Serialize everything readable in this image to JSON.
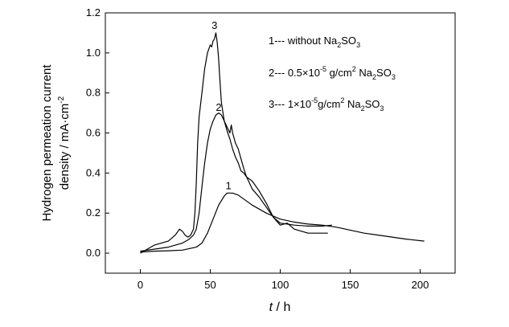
{
  "chart_data": {
    "type": "line",
    "ylabel_line1": "Hydrogen permeation current",
    "ylabel_line2": "density / mA·cm",
    "ylabel_sup": "-2",
    "xlabel_var": "t",
    "xlabel_unit": " / h",
    "xlim": [
      -25,
      225
    ],
    "ylim": [
      -0.1,
      1.2
    ],
    "xticks": [
      0,
      50,
      100,
      150,
      200
    ],
    "yticks": [
      0.0,
      0.2,
      0.4,
      0.6,
      0.8,
      1.0,
      1.2
    ],
    "xtick_labels": [
      "0",
      "50",
      "100",
      "150",
      "200"
    ],
    "ytick_labels": [
      "0.0",
      "0.2",
      "0.4",
      "0.6",
      "0.8",
      "1.0",
      "1.2"
    ],
    "legend": [
      {
        "prefix": "1--- without Na",
        "sub1": "2",
        "mid": "SO",
        "sub2": "3"
      },
      {
        "prefix": "2--- 0.5×10",
        "sup": "-5",
        "mid": " g/cm",
        "sup2": "2",
        "mid2": " Na",
        "sub1": "2",
        "mid3": "SO",
        "sub2": "3"
      },
      {
        "prefix": "3--- 1×10",
        "sup": "-5",
        "mid": "g/cm",
        "sup2": "2",
        "mid2": " Na",
        "sub1": "2",
        "mid3": "SO",
        "sub2": "3"
      }
    ],
    "series": [
      {
        "name": "1",
        "label_at": [
          63,
          0.32
        ],
        "x": [
          0,
          10,
          20,
          30,
          40,
          44,
          48,
          52,
          56,
          60,
          62,
          66,
          70,
          80,
          90,
          100,
          110,
          120,
          130,
          140,
          150,
          160,
          170,
          180,
          190,
          203
        ],
        "y": [
          0.005,
          0.01,
          0.012,
          0.015,
          0.03,
          0.05,
          0.1,
          0.17,
          0.24,
          0.285,
          0.3,
          0.3,
          0.29,
          0.24,
          0.2,
          0.17,
          0.155,
          0.145,
          0.14,
          0.13,
          0.115,
          0.1,
          0.09,
          0.08,
          0.07,
          0.06
        ]
      },
      {
        "name": "2",
        "label_at": [
          56,
          0.71
        ],
        "x": [
          0,
          10,
          20,
          30,
          35,
          38,
          40,
          42,
          44,
          46,
          48,
          50,
          52,
          54,
          56,
          58,
          60,
          62,
          64,
          65,
          66,
          68,
          70,
          72,
          74,
          76,
          78,
          80,
          85,
          90,
          95,
          100,
          105,
          110,
          120,
          130,
          137
        ],
        "y": [
          0.01,
          0.02,
          0.03,
          0.05,
          0.07,
          0.09,
          0.12,
          0.2,
          0.33,
          0.45,
          0.55,
          0.62,
          0.66,
          0.69,
          0.7,
          0.69,
          0.66,
          0.63,
          0.6,
          0.64,
          0.6,
          0.55,
          0.52,
          0.47,
          0.42,
          0.38,
          0.35,
          0.32,
          0.28,
          0.23,
          0.18,
          0.15,
          0.145,
          0.14,
          0.135,
          0.135,
          0.14
        ]
      },
      {
        "name": "3",
        "label_at": [
          53,
          1.12
        ],
        "x": [
          0,
          5,
          10,
          15,
          20,
          25,
          28,
          30,
          32,
          34,
          36,
          38,
          39,
          40,
          41,
          42,
          44,
          46,
          48,
          50,
          51,
          52,
          53,
          54,
          55,
          56,
          57,
          58,
          60,
          62,
          64,
          66,
          68,
          70,
          72,
          74,
          76,
          78,
          80,
          85,
          90,
          95,
          100,
          105,
          110,
          115,
          120,
          125,
          130,
          134
        ],
        "y": [
          0.0,
          0.02,
          0.04,
          0.05,
          0.06,
          0.09,
          0.12,
          0.11,
          0.09,
          0.08,
          0.09,
          0.12,
          0.2,
          0.35,
          0.55,
          0.68,
          0.8,
          0.92,
          1.0,
          1.04,
          1.03,
          1.06,
          1.07,
          1.1,
          1.05,
          0.97,
          0.85,
          0.75,
          0.66,
          0.61,
          0.57,
          0.52,
          0.48,
          0.45,
          0.41,
          0.4,
          0.38,
          0.37,
          0.36,
          0.31,
          0.25,
          0.18,
          0.14,
          0.15,
          0.12,
          0.11,
          0.1,
          0.1,
          0.1,
          0.1
        ]
      }
    ]
  }
}
